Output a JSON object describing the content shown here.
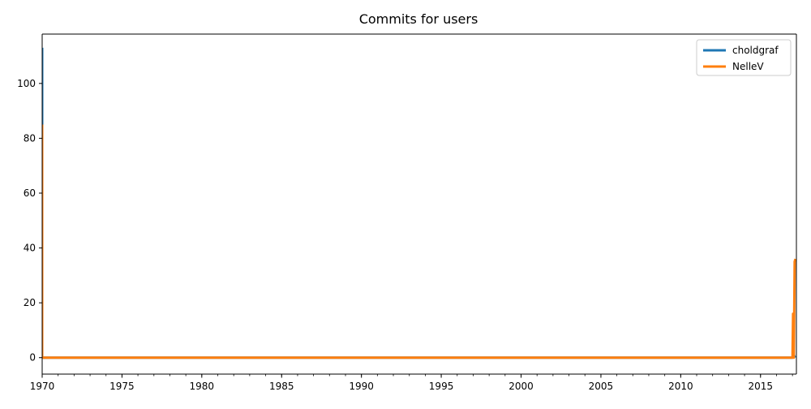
{
  "chart_data": {
    "type": "line",
    "title": "Commits for users",
    "xlabel": "",
    "ylabel": "",
    "x_axis_type": "date",
    "xlim": [
      "1970-01-01",
      "2017-04-01"
    ],
    "ylim": [
      -6,
      118
    ],
    "xticks_major": [
      "1970",
      "1975",
      "1980",
      "1985",
      "1990",
      "1995",
      "2000",
      "2005",
      "2010",
      "2015"
    ],
    "xticks_minor_every_year": true,
    "yticks": [
      0,
      20,
      40,
      60,
      80,
      100
    ],
    "grid": false,
    "legend_position": "top-right",
    "series": [
      {
        "name": "choldgraf",
        "color": "#1f77b4",
        "points": [
          {
            "x": "1970-01-01",
            "y": 113
          },
          {
            "x": "1970-01-01",
            "y": 86
          },
          {
            "x": "1970-01-01",
            "y": 0
          },
          {
            "x": "2017-01-01",
            "y": 0
          },
          {
            "x": "2017-02-01",
            "y": 1
          },
          {
            "x": "2017-03-01",
            "y": 0
          }
        ]
      },
      {
        "name": "NelleV",
        "color": "#ff7f0e",
        "points": [
          {
            "x": "1970-01-01",
            "y": 85
          },
          {
            "x": "1970-01-01",
            "y": 0
          },
          {
            "x": "2017-01-01",
            "y": 0
          },
          {
            "x": "2017-01-15",
            "y": 16
          },
          {
            "x": "2017-02-01",
            "y": 0
          },
          {
            "x": "2017-02-20",
            "y": 35
          },
          {
            "x": "2017-03-10",
            "y": 36
          }
        ]
      }
    ]
  }
}
